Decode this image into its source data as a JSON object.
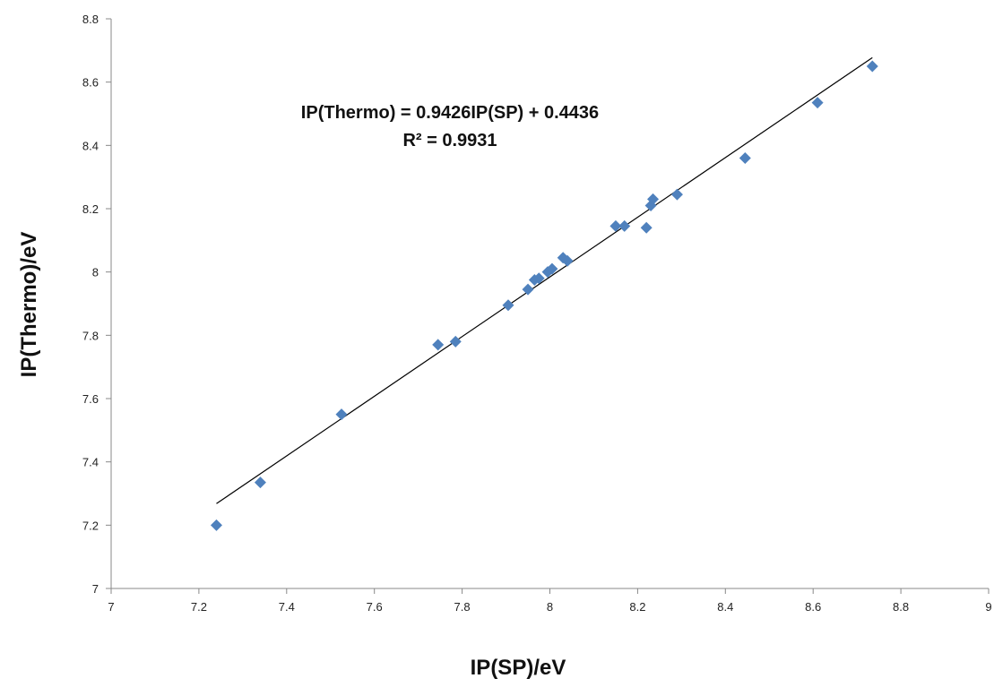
{
  "chart_data": {
    "type": "scatter",
    "xlabel": "IP(SP)/eV",
    "ylabel": "IP(Thermo)/eV",
    "xlim": [
      7,
      9
    ],
    "ylim": [
      7,
      8.8
    ],
    "x_ticks": [
      "7",
      "7.2",
      "7.4",
      "7.6",
      "7.8",
      "8",
      "8.2",
      "8.4",
      "8.6",
      "8.8",
      "9"
    ],
    "y_ticks": [
      "7",
      "7.2",
      "7.4",
      "7.6",
      "7.8",
      "8",
      "8.2",
      "8.4",
      "8.6",
      "8.8"
    ],
    "grid": false,
    "marker": "diamond",
    "marker_color": "#4F81BD",
    "trendline_color": "#000000",
    "series": [
      {
        "points": [
          [
            7.24,
            7.2
          ],
          [
            7.34,
            7.335
          ],
          [
            7.525,
            7.55
          ],
          [
            7.745,
            7.77
          ],
          [
            7.785,
            7.78
          ],
          [
            7.905,
            7.895
          ],
          [
            7.95,
            7.945
          ],
          [
            7.965,
            7.975
          ],
          [
            7.975,
            7.98
          ],
          [
            7.995,
            8.0
          ],
          [
            8.005,
            8.01
          ],
          [
            8.03,
            8.045
          ],
          [
            8.04,
            8.035
          ],
          [
            8.15,
            8.145
          ],
          [
            8.17,
            8.145
          ],
          [
            8.22,
            8.14
          ],
          [
            8.23,
            8.21
          ],
          [
            8.235,
            8.23
          ],
          [
            8.29,
            8.245
          ],
          [
            8.445,
            8.36
          ],
          [
            8.61,
            8.535
          ],
          [
            8.735,
            8.65
          ]
        ]
      }
    ],
    "trendline": {
      "slope": 0.9426,
      "intercept": 0.4436,
      "x_range": [
        7.24,
        8.735
      ]
    },
    "equation_label": "IP(Thermo) = 0.9426IP(SP) + 0.4436",
    "r2_label": "R² = 0.9931"
  }
}
